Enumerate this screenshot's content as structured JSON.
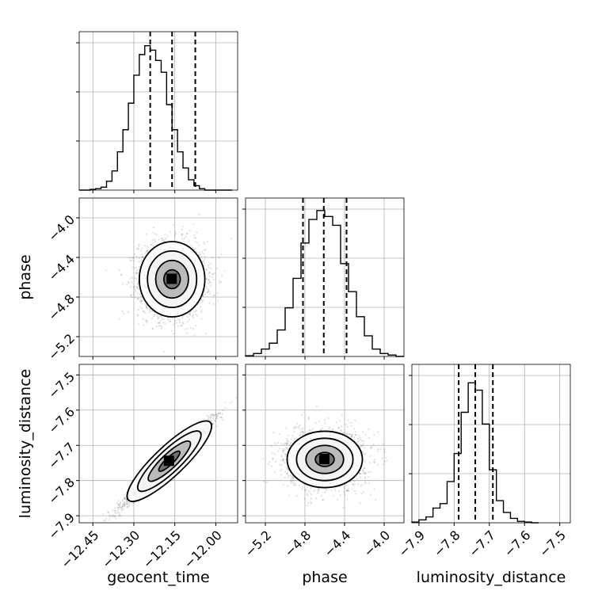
{
  "chart_data": {
    "type": "corner",
    "parameters": [
      "geocent_time",
      "phase",
      "luminosity_distance"
    ],
    "axes": {
      "geocent_time": {
        "label": "geocent_time",
        "range": [
          -12.5,
          -11.92
        ],
        "ticks": [
          -12.45,
          -12.3,
          -12.15,
          -12.0
        ],
        "tick_labels": [
          "−12.45",
          "−12.30",
          "−12.15",
          "−12.00"
        ]
      },
      "phase": {
        "label": "phase",
        "range": [
          -5.4,
          -3.8
        ],
        "ticks": [
          -5.2,
          -4.8,
          -4.4,
          -4.0
        ],
        "tick_labels": [
          "−5.2",
          "−4.8",
          "−4.4",
          "−4.0"
        ]
      },
      "luminosity_distance": {
        "label": "luminosity_distance",
        "range": [
          -7.92,
          -7.47
        ],
        "ticks": [
          -7.9,
          -7.8,
          -7.7,
          -7.6,
          -7.5
        ],
        "tick_labels": [
          "−7.9",
          "−7.8",
          "−7.7",
          "−7.6",
          "−7.5"
        ]
      }
    },
    "histograms": {
      "geocent_time": {
        "bin_edges": [
          -12.5,
          -12.48,
          -12.46,
          -12.44,
          -12.42,
          -12.4,
          -12.38,
          -12.36,
          -12.34,
          -12.32,
          -12.3,
          -12.28,
          -12.26,
          -12.24,
          -12.22,
          -12.2,
          -12.18,
          -12.16,
          -12.14,
          -12.12,
          -12.1,
          -12.08,
          -12.06,
          -12.04,
          -12.02,
          -12.0,
          -11.98,
          -11.96,
          -11.94
        ],
        "counts": [
          0.0,
          0.0,
          0.005,
          0.01,
          0.02,
          0.06,
          0.13,
          0.26,
          0.41,
          0.59,
          0.78,
          0.92,
          0.98,
          0.95,
          0.88,
          0.8,
          0.58,
          0.41,
          0.26,
          0.15,
          0.07,
          0.03,
          0.01,
          0.0,
          0.0,
          0.0,
          0.0,
          0.0
        ],
        "quantiles": [
          -12.24,
          -12.16,
          -12.075
        ]
      },
      "phase": {
        "bin_edges": [
          -5.4,
          -5.32,
          -5.24,
          -5.16,
          -5.08,
          -5.0,
          -4.92,
          -4.84,
          -4.76,
          -4.68,
          -4.6,
          -4.52,
          -4.44,
          -4.36,
          -4.28,
          -4.2,
          -4.12,
          -4.04,
          -3.96,
          -3.88,
          -3.8
        ],
        "counts": [
          0.005,
          0.02,
          0.05,
          0.09,
          0.18,
          0.33,
          0.53,
          0.77,
          0.93,
          0.99,
          0.95,
          0.89,
          0.63,
          0.44,
          0.27,
          0.14,
          0.05,
          0.02,
          0.01,
          0.0
        ],
        "quantiles": [
          -4.82,
          -4.61,
          -4.38
        ]
      },
      "luminosity_distance": {
        "bin_edges": [
          -7.92,
          -7.9,
          -7.88,
          -7.86,
          -7.84,
          -7.82,
          -7.8,
          -7.78,
          -7.76,
          -7.74,
          -7.72,
          -7.7,
          -7.68,
          -7.66,
          -7.64,
          -7.62,
          -7.6,
          -7.58,
          -7.56
        ],
        "counts": [
          0.005,
          0.02,
          0.04,
          0.1,
          0.13,
          0.28,
          0.47,
          0.75,
          0.95,
          0.9,
          0.67,
          0.36,
          0.15,
          0.07,
          0.03,
          0.01,
          0.005,
          0.0
        ],
        "quantiles": [
          -7.787,
          -7.74,
          -7.69
        ]
      }
    },
    "joint_2d": [
      {
        "x": "geocent_time",
        "y": "phase",
        "center": [
          -12.16,
          -4.62
        ],
        "sigma": [
          0.06,
          0.19
        ],
        "correlation": 0.0
      },
      {
        "x": "geocent_time",
        "y": "luminosity_distance",
        "center": [
          -12.17,
          -7.745
        ],
        "sigma": [
          0.075,
          0.055
        ],
        "correlation": 0.98
      },
      {
        "x": "phase",
        "y": "luminosity_distance",
        "center": [
          -4.6,
          -7.74
        ],
        "sigma": [
          0.19,
          0.04
        ],
        "correlation": 0.0
      }
    ],
    "contour_levels_sigma": [
      0.5,
      1.0,
      1.5,
      2.0
    ],
    "grid": true,
    "legend": "none"
  }
}
